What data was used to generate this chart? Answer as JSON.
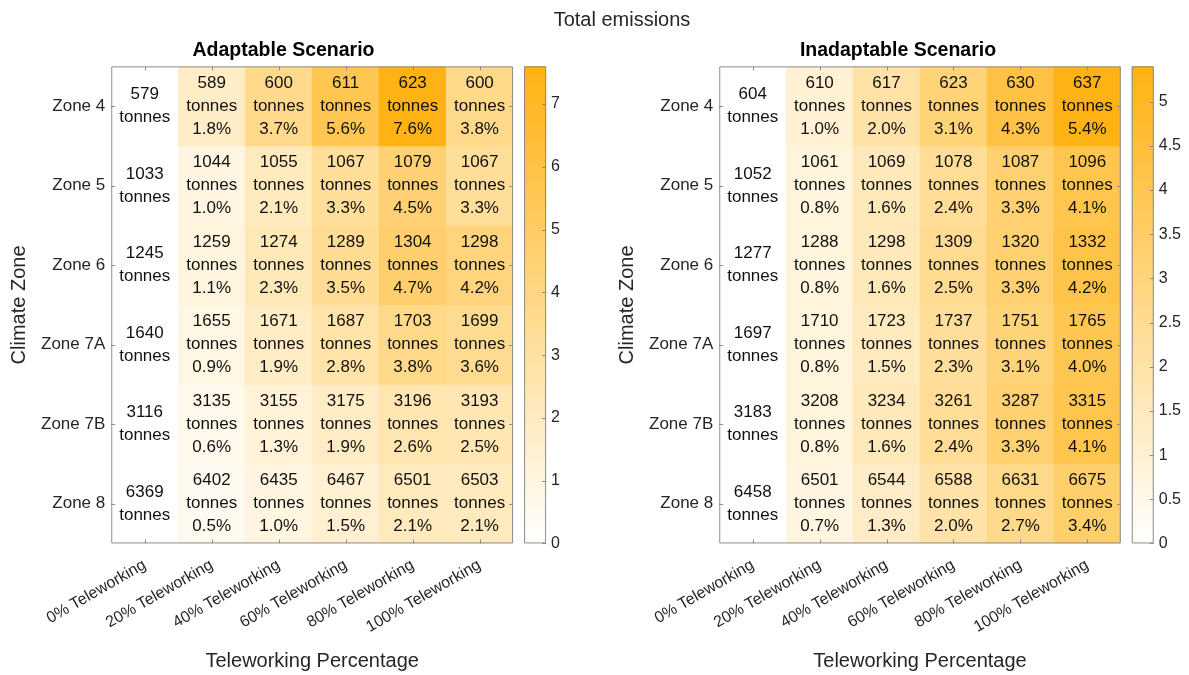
{
  "chart_data": [
    {
      "type": "heatmap",
      "title": "Adaptable Scenario",
      "xlabel": "Teleworking Percentage",
      "ylabel": "Climate Zone",
      "annotations": [
        "Total emissions"
      ],
      "categories": [
        "0% Teleworking",
        "20% Teleworking",
        "40% Teleworking",
        "60% Teleworking",
        "80% Teleworking",
        "100% Teleworking"
      ],
      "y_categories": [
        "Zone 4",
        "Zone 5",
        "Zone 6",
        "Zone 7A",
        "Zone 7B",
        "Zone 8"
      ],
      "cells": [
        [
          null,
          1.8,
          3.7,
          5.6,
          7.6,
          3.8
        ],
        [
          null,
          1.0,
          2.1,
          3.3,
          4.5,
          3.3
        ],
        [
          null,
          1.1,
          2.3,
          3.5,
          4.7,
          4.2
        ],
        [
          null,
          0.9,
          1.9,
          2.8,
          3.8,
          3.6
        ],
        [
          null,
          0.6,
          1.3,
          1.9,
          2.6,
          2.5
        ],
        [
          null,
          0.5,
          1.0,
          1.5,
          2.1,
          2.1
        ]
      ],
      "cell_labels": [
        [
          "579\ntonnes",
          "589\ntonnes\n1.8%",
          "600\ntonnes\n3.7%",
          "611\ntonnes\n5.6%",
          "623\ntonnes\n7.6%",
          "600\ntonnes\n3.8%"
        ],
        [
          "1033\ntonnes",
          "1044\ntonnes\n1.0%",
          "1055\ntonnes\n2.1%",
          "1067\ntonnes\n3.3%",
          "1079\ntonnes\n4.5%",
          "1067\ntonnes\n3.3%"
        ],
        [
          "1245\ntonnes",
          "1259\ntonnes\n1.1%",
          "1274\ntonnes\n2.3%",
          "1289\ntonnes\n3.5%",
          "1304\ntonnes\n4.7%",
          "1298\ntonnes\n4.2%"
        ],
        [
          "1640\ntonnes",
          "1655\ntonnes\n0.9%",
          "1671\ntonnes\n1.9%",
          "1687\ntonnes\n2.8%",
          "1703\ntonnes\n3.8%",
          "1699\ntonnes\n3.6%"
        ],
        [
          "3116\ntonnes",
          "3135\ntonnes\n0.6%",
          "3155\ntonnes\n1.3%",
          "3175\ntonnes\n1.9%",
          "3196\ntonnes\n2.6%",
          "3193\ntonnes\n2.5%"
        ],
        [
          "6369\ntonnes",
          "6402\ntonnes\n0.5%",
          "6435\ntonnes\n1.0%",
          "6467\ntonnes\n1.5%",
          "6501\ntonnes\n2.1%",
          "6503\ntonnes\n2.1%"
        ]
      ],
      "clim": [
        0,
        7.6
      ],
      "cticks": [
        0,
        1,
        2,
        3,
        4,
        5,
        6,
        7
      ]
    },
    {
      "type": "heatmap",
      "title": "Inadaptable Scenario",
      "xlabel": "Teleworking Percentage",
      "ylabel": "Climate Zone",
      "categories": [
        "0% Teleworking",
        "20% Teleworking",
        "40% Teleworking",
        "60% Teleworking",
        "80% Teleworking",
        "100% Teleworking"
      ],
      "y_categories": [
        "Zone 4",
        "Zone 5",
        "Zone 6",
        "Zone 7A",
        "Zone 7B",
        "Zone 8"
      ],
      "cells": [
        [
          null,
          1.0,
          2.0,
          3.1,
          4.3,
          5.4
        ],
        [
          null,
          0.8,
          1.6,
          2.4,
          3.3,
          4.1
        ],
        [
          null,
          0.8,
          1.6,
          2.5,
          3.3,
          4.2
        ],
        [
          null,
          0.8,
          1.5,
          2.3,
          3.1,
          4.0
        ],
        [
          null,
          0.8,
          1.6,
          2.4,
          3.3,
          4.1
        ],
        [
          null,
          0.7,
          1.3,
          2.0,
          2.7,
          3.4
        ]
      ],
      "cell_labels": [
        [
          "604\ntonnes",
          "610\ntonnes\n1.0%",
          "617\ntonnes\n2.0%",
          "623\ntonnes\n3.1%",
          "630\ntonnes\n4.3%",
          "637\ntonnes\n5.4%"
        ],
        [
          "1052\ntonnes",
          "1061\ntonnes\n0.8%",
          "1069\ntonnes\n1.6%",
          "1078\ntonnes\n2.4%",
          "1087\ntonnes\n3.3%",
          "1096\ntonnes\n4.1%"
        ],
        [
          "1277\ntonnes",
          "1288\ntonnes\n0.8%",
          "1298\ntonnes\n1.6%",
          "1309\ntonnes\n2.5%",
          "1320\ntonnes\n3.3%",
          "1332\ntonnes\n4.2%"
        ],
        [
          "1697\ntonnes",
          "1710\ntonnes\n0.8%",
          "1723\ntonnes\n1.5%",
          "1737\ntonnes\n2.3%",
          "1751\ntonnes\n3.1%",
          "1765\ntonnes\n4.0%"
        ],
        [
          "3183\ntonnes",
          "3208\ntonnes\n0.8%",
          "3234\ntonnes\n1.6%",
          "3261\ntonnes\n2.4%",
          "3287\ntonnes\n3.3%",
          "3315\ntonnes\n4.1%"
        ],
        [
          "6458\ntonnes",
          "6501\ntonnes\n0.7%",
          "6544\ntonnes\n1.3%",
          "6588\ntonnes\n2.0%",
          "6631\ntonnes\n2.7%",
          "6675\ntonnes\n3.4%"
        ]
      ],
      "clim": [
        0,
        5.4
      ],
      "cticks": [
        0,
        0.5,
        1,
        1.5,
        2,
        2.5,
        3,
        3.5,
        4,
        4.5,
        5
      ]
    }
  ]
}
